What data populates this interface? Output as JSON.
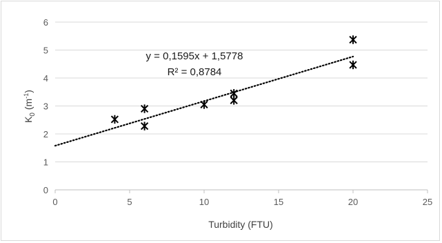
{
  "chart_data": {
    "type": "scatter",
    "title": "",
    "xlabel": "Turbidity (FTU)",
    "ylabel": {
      "base": "K",
      "sub": "0",
      "unit_open": " (m",
      "unit_sup": "-1",
      "unit_close": ")"
    },
    "xlim": [
      0,
      25
    ],
    "ylim": [
      0,
      6
    ],
    "x_ticks": [
      0,
      5,
      10,
      15,
      20,
      25
    ],
    "y_ticks": [
      0,
      1,
      2,
      3,
      4,
      5,
      6
    ],
    "grid": {
      "horizontal": true,
      "vertical": false
    },
    "series": [
      {
        "marker": "asterisk",
        "color": "#000000",
        "points": [
          {
            "x": 4,
            "y": 2.52
          },
          {
            "x": 6,
            "y": 2.9
          },
          {
            "x": 6,
            "y": 2.28
          },
          {
            "x": 10,
            "y": 3.05
          },
          {
            "x": 12,
            "y": 3.45
          },
          {
            "x": 12,
            "y": 3.2
          },
          {
            "x": 20,
            "y": 5.37
          },
          {
            "x": 20,
            "y": 4.47
          }
        ]
      }
    ],
    "open_markers": [
      {
        "x": 12,
        "y": 3.32
      }
    ],
    "trendline": {
      "type": "linear",
      "slope": 0.1595,
      "intercept": 1.5778,
      "x_range": [
        0,
        20
      ],
      "style": "dotted",
      "equation_label": "y = 0,1595x + 1,5778",
      "r2_label": "R² = 0,8784"
    },
    "colors": {
      "gridline": "#d9d9d9",
      "axis": "#bfbfbf",
      "marker": "#000000",
      "trendline": "#000000"
    }
  }
}
